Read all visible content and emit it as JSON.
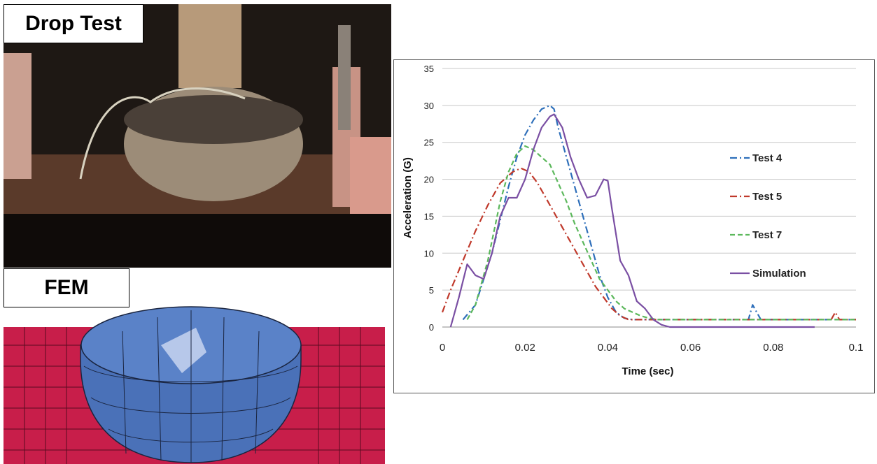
{
  "photo": {
    "label": "Drop Test"
  },
  "fem": {
    "label": "FEM"
  },
  "chart_data": {
    "type": "line",
    "xlabel": "Time (sec)",
    "ylabel": "Acceleration (G)",
    "xlim": [
      0,
      0.1
    ],
    "ylim": [
      0,
      35
    ],
    "xticks": [
      "0",
      "0.02",
      "0.04",
      "0.06",
      "0.08",
      "0.1"
    ],
    "yticks": [
      "0",
      "5",
      "10",
      "15",
      "20",
      "25",
      "30",
      "35"
    ],
    "grid": true,
    "legend_position": "right",
    "series": [
      {
        "name": "Test 4",
        "color": "#2e6fba",
        "dash": "dashdot",
        "x": [
          0.005,
          0.008,
          0.012,
          0.016,
          0.018,
          0.02,
          0.022,
          0.024,
          0.026,
          0.027,
          0.028,
          0.03,
          0.032,
          0.034,
          0.036,
          0.038,
          0.04,
          0.042,
          0.044,
          0.046,
          0.048,
          0.05,
          0.06,
          0.07,
          0.074,
          0.075,
          0.076,
          0.077,
          0.08,
          0.09,
          0.1
        ],
        "y": [
          1,
          3,
          10,
          19,
          23,
          26,
          28,
          29.5,
          30,
          29.5,
          27,
          23,
          19,
          15,
          11,
          7,
          4,
          2,
          1.2,
          1,
          1,
          1,
          1,
          1,
          1,
          3,
          2,
          1,
          1,
          1,
          1
        ]
      },
      {
        "name": "Test 5",
        "color": "#c0392b",
        "dash": "dashdot",
        "x": [
          0,
          0.002,
          0.005,
          0.008,
          0.011,
          0.014,
          0.017,
          0.019,
          0.021,
          0.023,
          0.025,
          0.027,
          0.029,
          0.031,
          0.033,
          0.035,
          0.037,
          0.039,
          0.041,
          0.043,
          0.045,
          0.047,
          0.05,
          0.06,
          0.08,
          0.094,
          0.095,
          0.096,
          0.1
        ],
        "y": [
          2,
          5,
          9,
          13,
          16.5,
          19.5,
          21,
          21.5,
          21,
          19.5,
          17.5,
          15.5,
          13.5,
          11.5,
          9.5,
          7.5,
          5.5,
          4,
          2.5,
          1.5,
          1,
          1,
          1,
          1,
          1,
          1,
          2,
          1,
          1
        ]
      },
      {
        "name": "Test 7",
        "color": "#5cb85c",
        "dash": "dash",
        "x": [
          0.006,
          0.008,
          0.011,
          0.014,
          0.016,
          0.018,
          0.02,
          0.022,
          0.024,
          0.026,
          0.028,
          0.03,
          0.032,
          0.034,
          0.036,
          0.038,
          0.04,
          0.042,
          0.044,
          0.046,
          0.048,
          0.05,
          0.052,
          0.06,
          0.08,
          0.1
        ],
        "y": [
          1,
          3,
          9,
          17,
          21,
          23.5,
          24.5,
          24,
          23,
          22,
          19.5,
          17,
          14,
          11.5,
          9,
          6.5,
          5,
          3.5,
          2.5,
          2,
          1.5,
          1.2,
          1,
          1,
          1,
          1
        ]
      },
      {
        "name": "Simulation",
        "color": "#7a4fa3",
        "dash": "solid",
        "x": [
          0.002,
          0.004,
          0.006,
          0.008,
          0.01,
          0.012,
          0.014,
          0.016,
          0.018,
          0.02,
          0.022,
          0.024,
          0.026,
          0.027,
          0.029,
          0.031,
          0.033,
          0.035,
          0.037,
          0.039,
          0.04,
          0.041,
          0.043,
          0.044,
          0.045,
          0.047,
          0.049,
          0.051,
          0.053,
          0.055,
          0.06,
          0.09
        ],
        "y": [
          0,
          4,
          8.5,
          7,
          6.5,
          10,
          15,
          17.5,
          17.5,
          20,
          24,
          27,
          28.5,
          28.8,
          27,
          23,
          20,
          17.5,
          17.8,
          20,
          19.8,
          16,
          9,
          8,
          7,
          3.5,
          2.5,
          1,
          0.3,
          0,
          0,
          0
        ]
      }
    ]
  }
}
